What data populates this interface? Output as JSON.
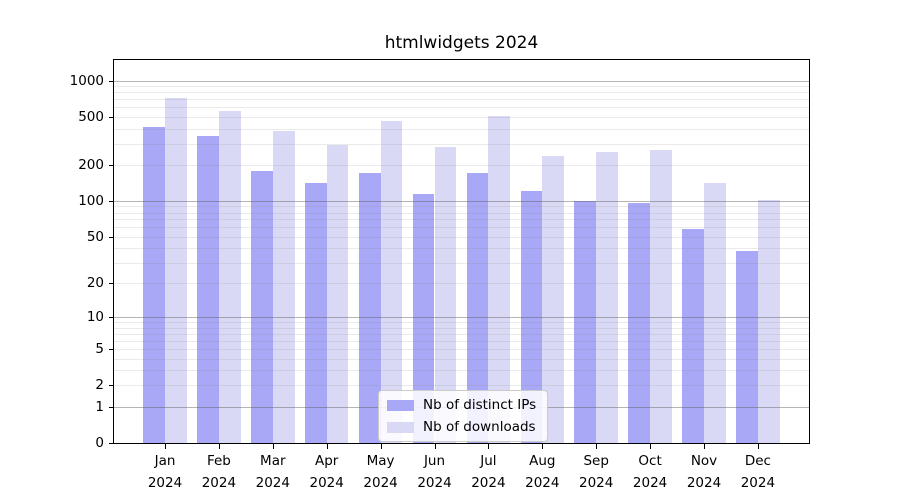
{
  "title": "htmlwidgets 2024",
  "chart_data": {
    "type": "bar",
    "title": "htmlwidgets 2024",
    "categories": [
      "Jan 2024",
      "Feb 2024",
      "Mar 2024",
      "Apr 2024",
      "May 2024",
      "Jun 2024",
      "Jul 2024",
      "Aug 2024",
      "Sep 2024",
      "Oct 2024",
      "Nov 2024",
      "Dec 2024"
    ],
    "series": [
      {
        "name": "Nb of distinct IPs",
        "color": "#a8a8f6",
        "values": [
          410,
          345,
          177,
          142,
          170,
          115,
          170,
          120,
          100,
          97,
          58,
          38
        ]
      },
      {
        "name": "Nb of downloads",
        "color": "#d9d9f6",
        "values": [
          715,
          555,
          385,
          290,
          460,
          283,
          512,
          238,
          258,
          268,
          142,
          102
        ]
      }
    ],
    "yscale": "log(1+x)",
    "ylim": [
      0,
      1000
    ],
    "yticks": [
      0,
      1,
      2,
      5,
      10,
      20,
      50,
      100,
      200,
      500,
      1000
    ],
    "grid": "on",
    "legend_position": "lower center",
    "colors": {
      "major_grid": "#b3b3b3",
      "minor_grid": "#eaeaea",
      "axis": "#000000",
      "background": "#ffffff"
    }
  }
}
